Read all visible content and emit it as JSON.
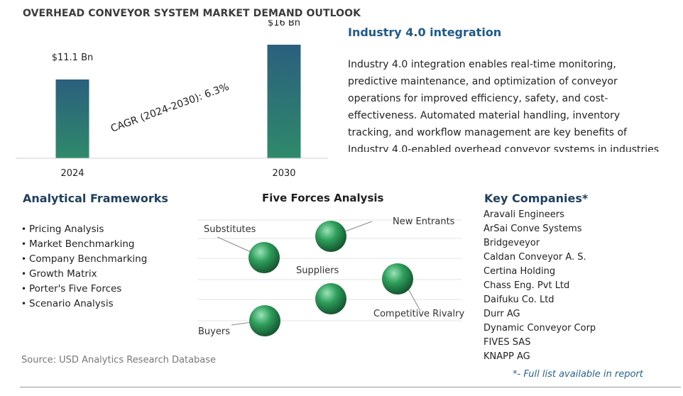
{
  "page": {
    "title": "OVERHEAD CONVEYOR SYSTEM MARKET DEMAND OUTLOOK",
    "source": "Source: USD Analytics Research Database"
  },
  "chart_data": {
    "type": "bar",
    "categories": [
      "2024",
      "2030"
    ],
    "values": [
      11.1,
      16
    ],
    "value_labels": [
      "$11.1 Bn",
      "$16 Bn"
    ],
    "annotation": "CAGR (2024-2030):  6.3%",
    "title": "OVERHEAD CONVEYOR SYSTEM MARKET DEMAND OUTLOOK",
    "xlabel": "",
    "ylabel": "",
    "ylim": [
      0,
      17
    ],
    "grid": false,
    "colors": {
      "bar_top": "#2b5f7e",
      "bar_bottom": "#2f8a6a",
      "baseline": "#d0d0d0"
    }
  },
  "feature": {
    "heading": "Industry 4.0 integration",
    "body": "Industry 4.0 integration enables real-time monitoring, predictive maintenance, and optimization of conveyor operations for improved efficiency, safety, and cost-effectiveness. Automated material handling, inventory tracking, and workflow management are key benefits of Industry 4.0-enabled overhead conveyor systems in industries"
  },
  "frameworks": {
    "heading": "Analytical Frameworks",
    "items": [
      "Pricing Analysis",
      "Market Benchmarking",
      "Company Benchmarking",
      "Growth Matrix",
      "Porter's Five Forces",
      "Scenario Analysis"
    ]
  },
  "five_forces": {
    "heading": "Five Forces Analysis",
    "labels": {
      "substitutes": "Substitutes",
      "new_entrants": "New Entrants",
      "suppliers": "Suppliers",
      "competitive_rivalry": "Competitive Rivalry",
      "buyers": "Buyers"
    },
    "colors": {
      "sphere_light": "#9be3b8",
      "sphere_mid": "#2e9e5b",
      "sphere_dark": "#14532e",
      "line": "#888888"
    }
  },
  "companies": {
    "heading": "Key Companies*",
    "items": [
      "Aravali Engineers",
      "ArSai Conve Systems",
      "Bridgeveyor",
      "Caldan Conveyor A. S.",
      "Certina Holding",
      "Chass Eng. Pvt Ltd",
      "Daifuku Co. Ltd",
      "Durr AG",
      "Dynamic Conveyor Corp",
      "FIVES SAS",
      "KNAPP AG"
    ],
    "note": "*- Full list available in report"
  }
}
